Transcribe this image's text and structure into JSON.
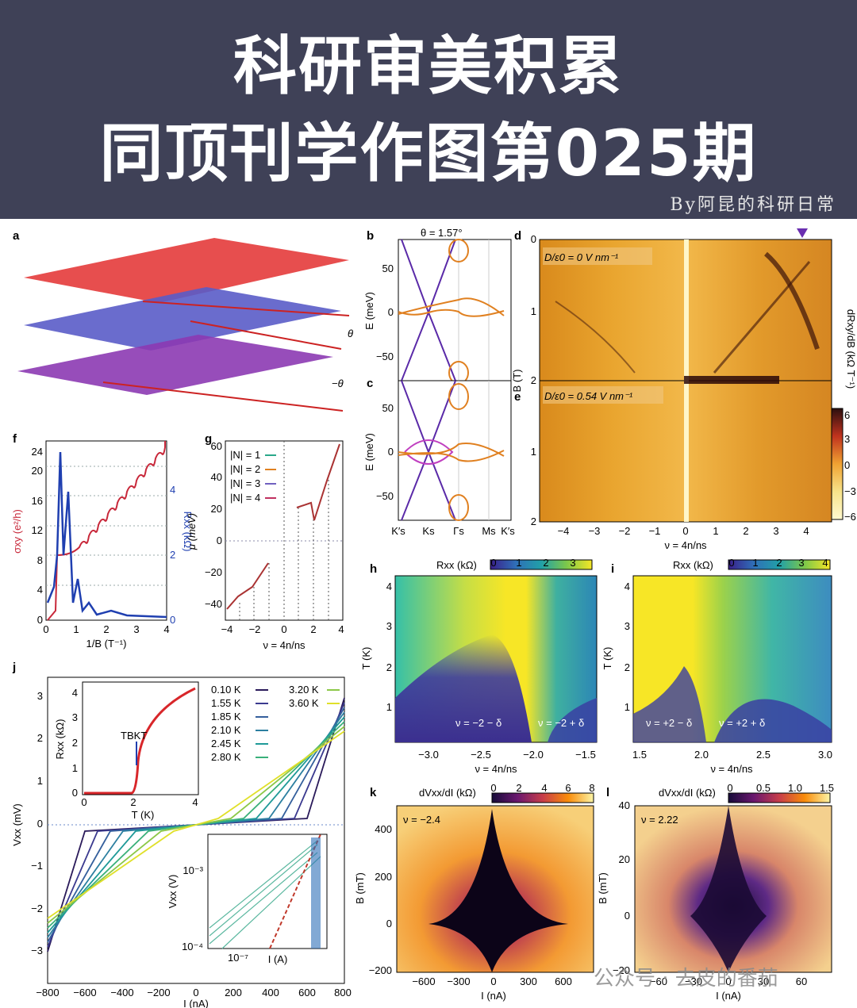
{
  "banner": {
    "line1": "科研审美积累",
    "line2": "同顶刊学作图第025期",
    "byline": "By阿昆的科研日常",
    "bg": "#3f4157"
  },
  "watermark": "公众号 · 去皮的番茄",
  "panels": {
    "a": {
      "label": "a",
      "theta": "θ",
      "neg_theta": "−θ"
    },
    "b": {
      "label": "b",
      "title": "θ = 1.57°",
      "yticks": [
        "50",
        "0",
        "−50"
      ],
      "ylabel": "E (meV)"
    },
    "c": {
      "label": "c",
      "yticks": [
        "50",
        "0",
        "−50"
      ],
      "ylabel": "E (meV)",
      "xticks": [
        "K′s",
        "Ks",
        "Γs",
        "Ms",
        "K′s"
      ]
    },
    "d": {
      "label": "d",
      "note": "D/ε0 = 0 V nm⁻¹",
      "yticks": [
        "0",
        "1",
        "2"
      ]
    },
    "e": {
      "label": "e",
      "note": "D/ε0 = 0.54 V nm⁻¹",
      "yticks": [
        "1",
        "2"
      ],
      "ylabel": "B (T)",
      "xticks": [
        "−4",
        "−3",
        "−2",
        "−1",
        "0",
        "1",
        "2",
        "3",
        "4"
      ],
      "xlabel": "ν = 4n/ns"
    },
    "cbar_de": {
      "label": "dRxy/dB (kΩ T⁻¹)",
      "ticks": [
        "6",
        "3",
        "0",
        "−3",
        "−6"
      ]
    },
    "f": {
      "label": "f",
      "yleft_ticks": [
        "0",
        "4",
        "8",
        "12",
        "16",
        "20",
        "24"
      ],
      "yright_ticks": [
        "0",
        "2",
        "4"
      ],
      "ylabel_left": "σxy (e²/h)",
      "ylabel_right": "Rxx (kΩ)",
      "xticks": [
        "0",
        "1",
        "2",
        "3",
        "4"
      ],
      "xlabel": "1/B (T⁻¹)"
    },
    "g": {
      "label": "g",
      "yticks": [
        "60",
        "40",
        "20",
        "0",
        "−20",
        "−40"
      ],
      "ylabel": "μ (meV)",
      "xticks": [
        "−4",
        "−2",
        "0",
        "2",
        "4"
      ],
      "xlabel": "ν = 4n/ns",
      "legend": [
        "|N| = 1",
        "|N| = 2",
        "|N| = 3",
        "|N| = 4"
      ]
    },
    "h": {
      "label": "h",
      "cbar_title": "Rxx (kΩ)",
      "cbar_ticks": [
        "0",
        "1",
        "2",
        "3"
      ],
      "yticks": [
        "4",
        "3",
        "2",
        "1"
      ],
      "ylabel": "T (K)",
      "xticks": [
        "−3.0",
        "−2.5",
        "−2.0",
        "−1.5"
      ],
      "xlabel": "ν = 4n/ns",
      "ann1": "ν = −2 − δ",
      "ann2": "ν = −2 + δ"
    },
    "i": {
      "label": "i",
      "cbar_title": "Rxx (kΩ)",
      "cbar_ticks": [
        "0",
        "1",
        "2",
        "3",
        "4"
      ],
      "yticks": [
        "4",
        "3",
        "2",
        "1"
      ],
      "ylabel": "T (K)",
      "xticks": [
        "1.5",
        "2.0",
        "2.5",
        "3.0"
      ],
      "xlabel": "ν = 4n/ns",
      "ann1": "ν = +2 − δ",
      "ann2": "ν = +2 + δ"
    },
    "j": {
      "label": "j",
      "yticks": [
        "3",
        "2",
        "1",
        "0",
        "−1",
        "−2",
        "−3"
      ],
      "ylabel": "Vxx (mV)",
      "xticks": [
        "−800",
        "−600",
        "−400",
        "−200",
        "0",
        "200",
        "400",
        "600",
        "800"
      ],
      "xlabel": "I (nA)",
      "legend": [
        "0.10 K",
        "1.55 K",
        "1.85 K",
        "2.10 K",
        "2.45 K",
        "2.80 K",
        "3.20 K",
        "3.60 K"
      ],
      "inset1": {
        "yticks": [
          "0",
          "1",
          "2",
          "3",
          "4"
        ],
        "ylabel": "Rxx (kΩ)",
        "xticks": [
          "0",
          "2",
          "4"
        ],
        "xlabel": "T (K)",
        "tbkt": "TBKT"
      },
      "inset2": {
        "yticks": [
          "10⁻³",
          "10⁻⁴"
        ],
        "ylabel": "Vxx (V)",
        "xtick": "10⁻⁷",
        "xlabel": "I (A)"
      }
    },
    "k": {
      "label": "k",
      "cbar_title": "dVxx/dI (kΩ)",
      "cbar_ticks": [
        "0",
        "2",
        "4",
        "6",
        "8"
      ],
      "note": "ν = −2.4",
      "yticks": [
        "400",
        "200",
        "0",
        "−200"
      ],
      "ylabel": "B (mT)",
      "xticks": [
        "−600",
        "−300",
        "0",
        "300",
        "600"
      ],
      "xlabel": "I (nA)"
    },
    "l": {
      "label": "l",
      "cbar_title": "dVxx/dI (kΩ)",
      "cbar_ticks": [
        "0",
        "0.5",
        "1.0",
        "1.5"
      ],
      "note": "ν = 2.22",
      "yticks": [
        "40",
        "20",
        "0",
        "−20"
      ],
      "ylabel": "B (mT)",
      "xticks": [
        "−60",
        "−30",
        "0",
        "30",
        "60"
      ],
      "xlabel": "I (nA)"
    }
  }
}
